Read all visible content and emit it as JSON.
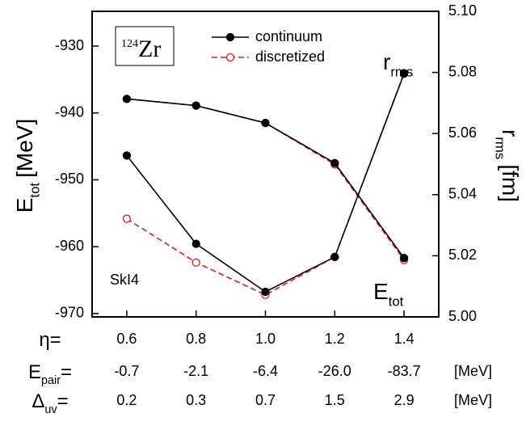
{
  "chart_data": {
    "type": "line",
    "x": [
      0.6,
      0.8,
      1.0,
      1.2,
      1.4
    ],
    "xlim": [
      0.5,
      1.5
    ],
    "xticks": [
      0.6,
      0.8,
      {
        "value": 1.0,
        "label": "1.0"
      },
      1.2,
      1.4
    ],
    "ylim": [
      -970.5,
      -924.8
    ],
    "yticks": [
      -930,
      -940,
      -950,
      -960,
      -970
    ],
    "y2lim": [
      5.0,
      5.1
    ],
    "y2ticks": [
      {
        "value": 5.0,
        "label": "5.00"
      },
      {
        "value": 5.02,
        "label": "5.02"
      },
      {
        "value": 5.04,
        "label": "5.04"
      },
      {
        "value": 5.06,
        "label": "5.06"
      },
      {
        "value": 5.08,
        "label": "5.08"
      },
      {
        "value": 5.1,
        "label": "5.10"
      }
    ],
    "y_label": {
      "main": "E",
      "sub": "tot",
      "unit": "[MeV]"
    },
    "y2_label": {
      "main": "r",
      "sub": "rms",
      "unit": "[fm]"
    },
    "series": [
      {
        "name": "continuum",
        "color": "#000000",
        "dash": false,
        "marker": "filled",
        "values": [
          -937.9,
          -938.9,
          -941.5,
          -947.5,
          -961.7
        ]
      },
      {
        "name": "discretized",
        "color": "#e8191c",
        "dash": true,
        "marker": "open",
        "values": [
          -937.9,
          -938.9,
          -941.5,
          -947.7,
          -962.0
        ]
      },
      {
        "name": "continuum",
        "color": "#000000",
        "dash": false,
        "marker": "filled",
        "axis": "y2",
        "values": [
          5.0528,
          5.0239,
          5.0082,
          5.0196,
          5.0796
        ]
      },
      {
        "name": "discretized",
        "color": "#e8191c",
        "dash": true,
        "marker": "open",
        "axis": "y2",
        "values": [
          5.0321,
          5.0178,
          5.0072,
          5.0196,
          5.0798
        ]
      }
    ],
    "annotations": {
      "nucleus": {
        "sup": "124",
        "main": "Zr"
      },
      "force": "SkI4",
      "r_label": {
        "main": "r",
        "sub": "rms"
      },
      "e_label": {
        "main": "E",
        "sub": "tot"
      }
    },
    "table": {
      "rows": [
        {
          "main": "η",
          "sub": "",
          "eq": "="
        },
        {
          "main": "E",
          "sub": "pair",
          "eq": "=",
          "values": [
            -0.7,
            -2.1,
            -6.4,
            {
              "value": -26.0,
              "label": "-26.0"
            },
            -83.7
          ],
          "unit": "[MeV]"
        },
        {
          "main": "Δ",
          "sub": "uv",
          "eq": "=",
          "values": [
            0.2,
            0.3,
            0.7,
            1.5,
            2.9
          ],
          "unit": "[MeV]"
        }
      ]
    }
  }
}
